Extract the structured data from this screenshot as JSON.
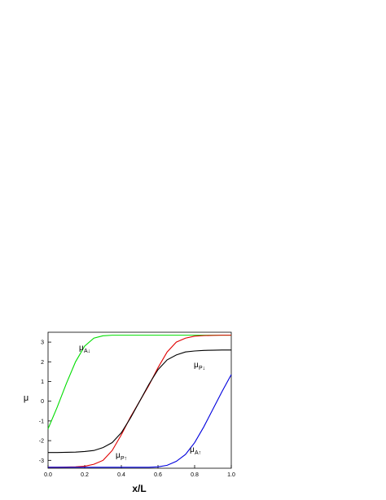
{
  "chart_data": {
    "type": "line",
    "x_label": "x/L",
    "y_label": "μ",
    "x": [
      0,
      0.05,
      0.1,
      0.15,
      0.2,
      0.25,
      0.3,
      0.35,
      0.4,
      0.45,
      0.5,
      0.55,
      0.6,
      0.65,
      0.7,
      0.75,
      0.8,
      0.85,
      0.9,
      0.95,
      1
    ],
    "series": [
      {
        "color": "#00dd00",
        "values": [
          -1.4,
          -0.3,
          0.9,
          2.0,
          2.8,
          3.2,
          3.32,
          3.35,
          3.35,
          3.35,
          3.35,
          3.35,
          3.35,
          3.35,
          3.35,
          3.35,
          3.35,
          3.35,
          3.35,
          3.35,
          3.35
        ]
      },
      {
        "color": "#e00000",
        "values": [
          -3.35,
          -3.35,
          -3.34,
          -3.33,
          -3.3,
          -3.2,
          -3.0,
          -2.5,
          -1.7,
          -0.8,
          0.0,
          0.8,
          1.7,
          2.5,
          3.0,
          3.2,
          3.3,
          3.33,
          3.34,
          3.35,
          3.35
        ]
      },
      {
        "color": "#000000",
        "values": [
          -2.6,
          -2.6,
          -2.59,
          -2.58,
          -2.55,
          -2.5,
          -2.35,
          -2.1,
          -1.6,
          -0.85,
          0.0,
          0.85,
          1.6,
          2.1,
          2.35,
          2.5,
          2.55,
          2.58,
          2.59,
          2.6,
          2.6
        ]
      },
      {
        "color": "#0000dd",
        "values": [
          -3.35,
          -3.35,
          -3.35,
          -3.35,
          -3.35,
          -3.35,
          -3.35,
          -3.35,
          -3.35,
          -3.35,
          -3.35,
          -3.35,
          -3.33,
          -3.25,
          -3.05,
          -2.7,
          -2.1,
          -1.3,
          -0.4,
          0.5,
          1.35
        ]
      }
    ],
    "annotations": [
      {
        "text": "μ",
        "sub": "A↓"
      },
      {
        "text": "μ",
        "sub": "P↓"
      },
      {
        "text": "μ",
        "sub": "P↑"
      },
      {
        "text": "μ",
        "sub": "A↑"
      }
    ],
    "xlim": [
      0,
      1
    ],
    "xticks": [
      {
        "value": 0,
        "label": "0.0"
      },
      0.2,
      0.4,
      0.6,
      0.8,
      {
        "value": 1,
        "label": "1.0"
      }
    ],
    "ylim": [
      -3.4,
      3.5
    ],
    "yticks": [
      -3,
      -2,
      -1,
      0,
      1,
      2,
      3
    ]
  }
}
